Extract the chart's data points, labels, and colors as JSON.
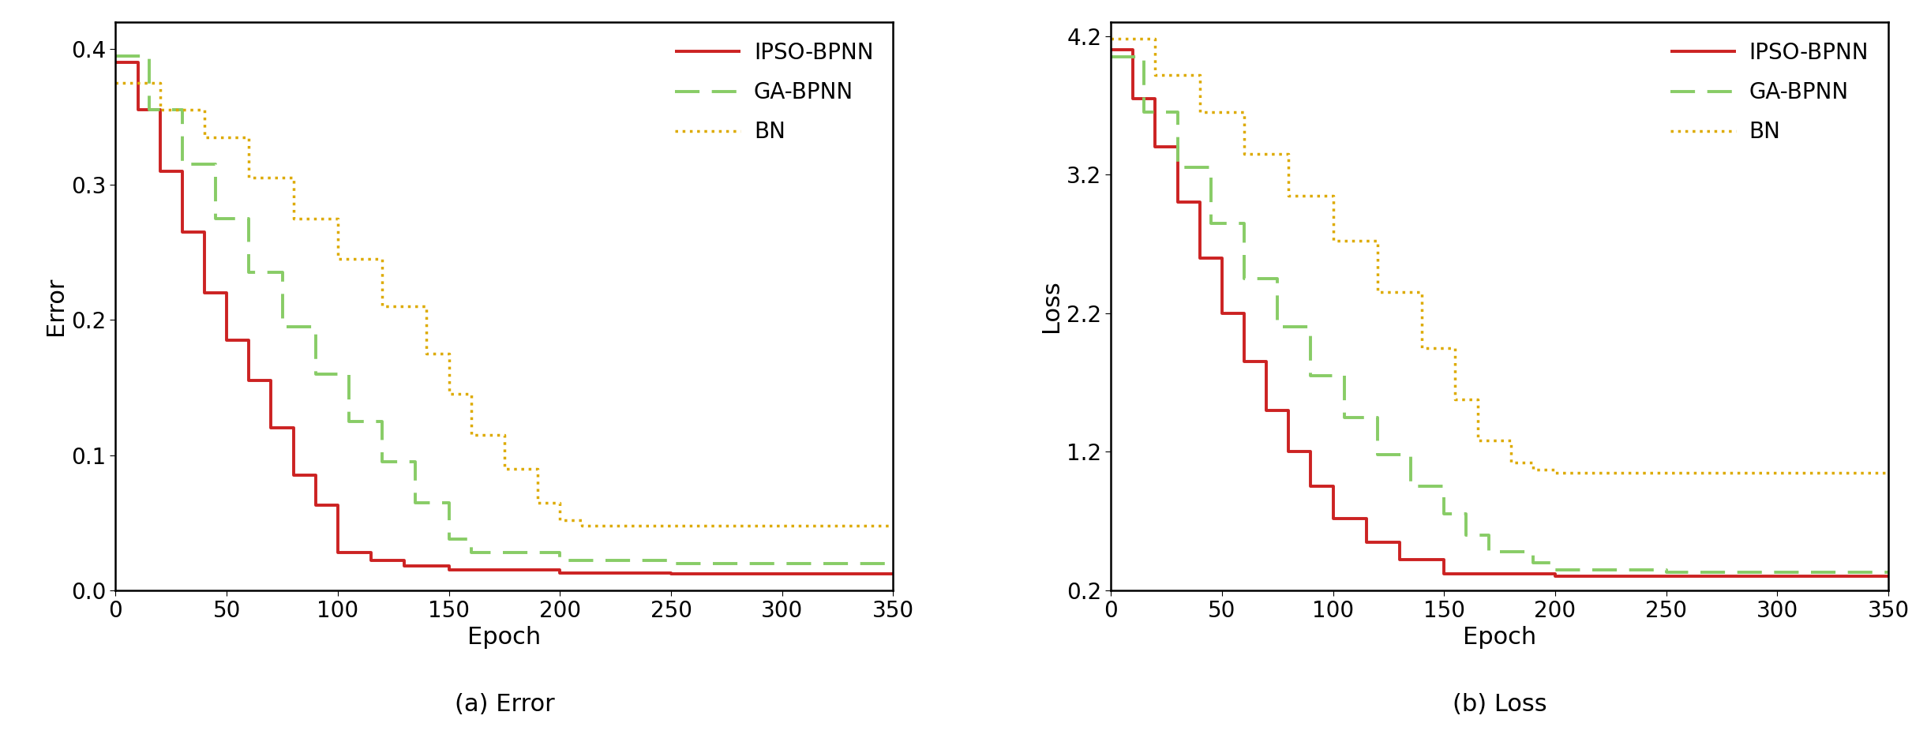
{
  "error_ipso": {
    "x": [
      0,
      10,
      20,
      30,
      40,
      50,
      60,
      70,
      80,
      90,
      100,
      115,
      130,
      150,
      200,
      250,
      300,
      350
    ],
    "y": [
      0.39,
      0.355,
      0.31,
      0.265,
      0.22,
      0.185,
      0.155,
      0.12,
      0.085,
      0.063,
      0.028,
      0.022,
      0.018,
      0.015,
      0.013,
      0.012,
      0.012,
      0.012
    ]
  },
  "error_ga": {
    "x": [
      0,
      15,
      30,
      45,
      60,
      75,
      90,
      105,
      120,
      135,
      150,
      160,
      200,
      250,
      300,
      350
    ],
    "y": [
      0.395,
      0.355,
      0.315,
      0.275,
      0.235,
      0.195,
      0.16,
      0.125,
      0.095,
      0.065,
      0.038,
      0.028,
      0.022,
      0.02,
      0.02,
      0.02
    ]
  },
  "error_bn": {
    "x": [
      0,
      20,
      40,
      60,
      80,
      100,
      120,
      140,
      150,
      160,
      175,
      190,
      200,
      210,
      250,
      300,
      350
    ],
    "y": [
      0.375,
      0.355,
      0.335,
      0.305,
      0.275,
      0.245,
      0.21,
      0.175,
      0.145,
      0.115,
      0.09,
      0.065,
      0.052,
      0.048,
      0.048,
      0.048,
      0.048
    ]
  },
  "loss_ipso": {
    "x": [
      0,
      10,
      20,
      30,
      40,
      50,
      60,
      70,
      80,
      90,
      100,
      115,
      130,
      150,
      200,
      250,
      300,
      350
    ],
    "y": [
      4.1,
      3.75,
      3.4,
      3.0,
      2.6,
      2.2,
      1.85,
      1.5,
      1.2,
      0.95,
      0.72,
      0.55,
      0.42,
      0.32,
      0.3,
      0.3,
      0.3,
      0.3
    ]
  },
  "loss_ga": {
    "x": [
      0,
      15,
      30,
      45,
      60,
      75,
      90,
      105,
      120,
      135,
      150,
      160,
      170,
      190,
      200,
      250,
      300,
      350
    ],
    "y": [
      4.05,
      3.65,
      3.25,
      2.85,
      2.45,
      2.1,
      1.75,
      1.45,
      1.18,
      0.95,
      0.75,
      0.6,
      0.48,
      0.4,
      0.35,
      0.33,
      0.33,
      0.33
    ]
  },
  "loss_bn": {
    "x": [
      0,
      20,
      40,
      60,
      80,
      100,
      120,
      140,
      155,
      165,
      180,
      190,
      200,
      250,
      300,
      350
    ],
    "y": [
      4.18,
      3.92,
      3.65,
      3.35,
      3.05,
      2.72,
      2.35,
      1.95,
      1.58,
      1.28,
      1.12,
      1.07,
      1.05,
      1.05,
      1.05,
      1.05
    ]
  },
  "color_ipso": "#cc2222",
  "color_ga": "#88cc66",
  "color_bn": "#ddaa00",
  "title_a": "(a) Error",
  "title_b": "(b) Loss",
  "xlabel": "Epoch",
  "ylabel_a": "Error",
  "ylabel_b": "Loss",
  "xlim": [
    0,
    350
  ],
  "ylim_a": [
    0.0,
    0.42
  ],
  "ylim_b": [
    0.2,
    4.3
  ],
  "xticks": [
    0,
    50,
    100,
    150,
    200,
    250,
    300,
    350
  ],
  "yticks_a": [
    0.0,
    0.1,
    0.2,
    0.3,
    0.4
  ],
  "yticks_b": [
    0.2,
    1.2,
    2.2,
    3.2,
    4.2
  ],
  "legend_labels": [
    "IPSO-BPNN",
    "GA-BPNN",
    "BN"
  ],
  "fontsize_labels": 22,
  "fontsize_ticks": 20,
  "fontsize_title": 22,
  "fontsize_legend": 20,
  "linewidth": 2.8,
  "dotted_linewidth": 2.5
}
